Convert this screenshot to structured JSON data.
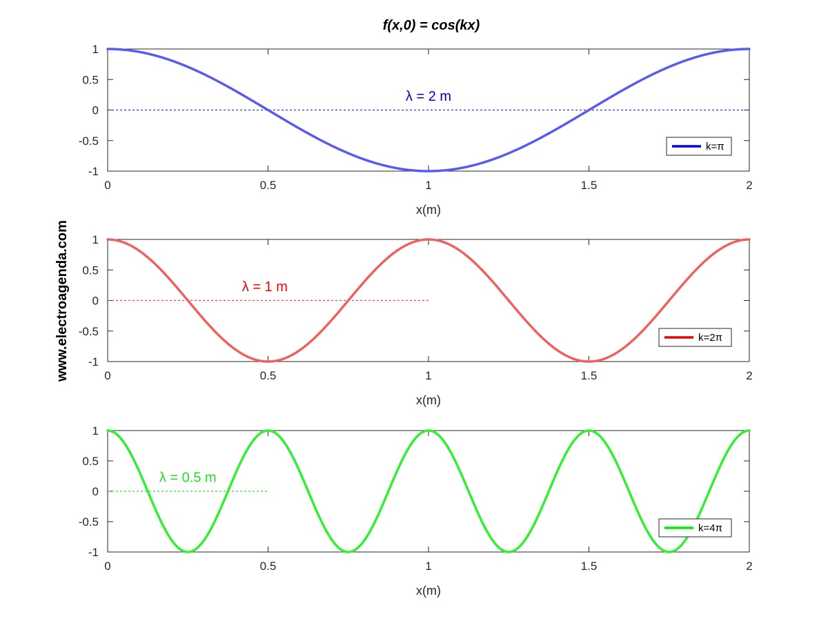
{
  "figure": {
    "title": "f(x,0) = cos(kx)",
    "watermark": "www.electroagenda.com"
  },
  "chart_data": [
    {
      "type": "line",
      "xlabel": "x(m)",
      "xlim": [
        0,
        2
      ],
      "ylim": [
        -1,
        1
      ],
      "xticks": [
        0,
        0.5,
        1,
        1.5,
        2
      ],
      "yticks": [
        -1,
        -0.5,
        0,
        0.5,
        1
      ],
      "xtick_labels": [
        "0",
        "0.5",
        "1",
        "1.5",
        "2"
      ],
      "ytick_labels": [
        "-1",
        "-0.5",
        "0",
        "0.5",
        "1"
      ],
      "grid": false,
      "legend_position": "right",
      "series": [
        {
          "name": "k=π",
          "function": "cos(kx)",
          "k_over_pi": 1,
          "color": "#5a5aee",
          "legend_color": "#0000dd"
        }
      ],
      "reference_line": {
        "y": 0,
        "x_range": [
          0,
          2
        ],
        "style": "dashed",
        "color": "#3333cc"
      },
      "annotation": {
        "text": "λ = 2 m",
        "x": 1.0,
        "y": 0.22,
        "color": "#0000cc"
      }
    },
    {
      "type": "line",
      "xlabel": "x(m)",
      "xlim": [
        0,
        2
      ],
      "ylim": [
        -1,
        1
      ],
      "xticks": [
        0,
        0.5,
        1,
        1.5,
        2
      ],
      "yticks": [
        -1,
        -0.5,
        0,
        0.5,
        1
      ],
      "xtick_labels": [
        "0",
        "0.5",
        "1",
        "1.5",
        "2"
      ],
      "ytick_labels": [
        "-1",
        "-0.5",
        "0",
        "0.5",
        "1"
      ],
      "grid": false,
      "legend_position": "right",
      "series": [
        {
          "name": "k=2π",
          "function": "cos(kx)",
          "k_over_pi": 2,
          "color": "#f06060",
          "legend_color": "#ee0000"
        }
      ],
      "reference_line": {
        "y": 0,
        "x_range": [
          0,
          1
        ],
        "style": "dashed",
        "color": "#ee4444"
      },
      "annotation": {
        "text": "λ = 1 m",
        "x": 0.49,
        "y": 0.22,
        "color": "#ee0000"
      }
    },
    {
      "type": "line",
      "xlabel": "x(m)",
      "xlim": [
        0,
        2
      ],
      "ylim": [
        -1,
        1
      ],
      "xticks": [
        0,
        0.5,
        1,
        1.5,
        2
      ],
      "yticks": [
        -1,
        -0.5,
        0,
        0.5,
        1
      ],
      "xtick_labels": [
        "0",
        "0.5",
        "1",
        "1.5",
        "2"
      ],
      "ytick_labels": [
        "-1",
        "-0.5",
        "0",
        "0.5",
        "1"
      ],
      "grid": false,
      "legend_position": "right",
      "series": [
        {
          "name": "k=4π",
          "function": "cos(kx)",
          "k_over_pi": 4,
          "color": "#33ee33",
          "legend_color": "#00ee00"
        }
      ],
      "reference_line": {
        "y": 0,
        "x_range": [
          0,
          0.5
        ],
        "style": "dashed",
        "color": "#33dd33"
      },
      "annotation": {
        "text": "λ = 0.5 m",
        "x": 0.25,
        "y": 0.22,
        "color": "#22dd22"
      }
    }
  ]
}
